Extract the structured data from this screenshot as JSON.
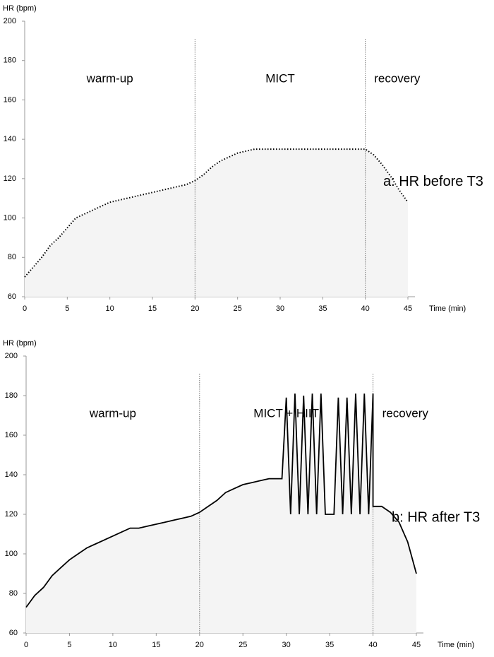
{
  "chart_data": [
    {
      "type": "line",
      "ylabel": "HR (bpm)",
      "xlabel": "Time (min)",
      "phases": [
        "warm-up",
        "MICT",
        "recovery"
      ],
      "phase_boundaries": [
        20,
        40
      ],
      "annotation": "a: HR before T3",
      "line_style": "dotted",
      "color": "#000000",
      "area_color": "#f4f4f4",
      "xlim": [
        0,
        45
      ],
      "xticks": [
        0,
        5,
        10,
        15,
        20,
        25,
        30,
        35,
        40,
        45
      ],
      "ylim": [
        60,
        200
      ],
      "yticks": [
        60,
        80,
        100,
        120,
        140,
        160,
        180,
        200
      ],
      "x": [
        0,
        1,
        2,
        3,
        4,
        5,
        6,
        7,
        8,
        9,
        10,
        11,
        12,
        13,
        14,
        15,
        16,
        17,
        18,
        19,
        20,
        21,
        22,
        23,
        24,
        25,
        26,
        27,
        28,
        30,
        32,
        34,
        36,
        38,
        40,
        41,
        42,
        43,
        44,
        45
      ],
      "series": [
        {
          "values": [
            70,
            75,
            80,
            86,
            90,
            95,
            100,
            102,
            104,
            106,
            108,
            109,
            110,
            111,
            112,
            113,
            114,
            115,
            116,
            117,
            119,
            122,
            126,
            129,
            131,
            133,
            134,
            135,
            135,
            135,
            135,
            135,
            135,
            135,
            135,
            132,
            127,
            121,
            114,
            108
          ]
        }
      ]
    },
    {
      "type": "line",
      "ylabel": "HR (bpm)",
      "xlabel": "Time (min)",
      "phases": [
        "warm-up",
        "MICT + HIIT",
        "recovery"
      ],
      "phase_boundaries": [
        20,
        40
      ],
      "annotation": "b: HR after T3",
      "line_style": "solid",
      "color": "#000000",
      "area_color": "#f4f4f4",
      "xlim": [
        0,
        45
      ],
      "xticks": [
        0,
        5,
        10,
        15,
        20,
        25,
        30,
        35,
        40,
        45
      ],
      "ylim": [
        60,
        200
      ],
      "yticks": [
        60,
        80,
        100,
        120,
        140,
        160,
        180,
        200
      ],
      "x": [
        0,
        1,
        2,
        3,
        4,
        5,
        6,
        7,
        8,
        9,
        10,
        11,
        12,
        13,
        14,
        15,
        16,
        17,
        18,
        19,
        20,
        21,
        22,
        23,
        24,
        25,
        26,
        27,
        28,
        29.5,
        30,
        30.5,
        31,
        31.5,
        32,
        32.5,
        33,
        33.5,
        34,
        34.5,
        35.5,
        36,
        36.5,
        37,
        37.5,
        38,
        38.5,
        39,
        39.5,
        40,
        40,
        41,
        42,
        43,
        44,
        45
      ],
      "series": [
        {
          "values": [
            73,
            79,
            83,
            89,
            93,
            97,
            100,
            103,
            105,
            107,
            109,
            111,
            113,
            113,
            114,
            115,
            116,
            117,
            118,
            119,
            121,
            124,
            127,
            131,
            133,
            135,
            136,
            137,
            138,
            138,
            179,
            120,
            181,
            120,
            180,
            120,
            181,
            120,
            181,
            120,
            120,
            179,
            120,
            179,
            120,
            181,
            120,
            181,
            120,
            181,
            124,
            124,
            121,
            116,
            106,
            90
          ]
        }
      ]
    }
  ]
}
